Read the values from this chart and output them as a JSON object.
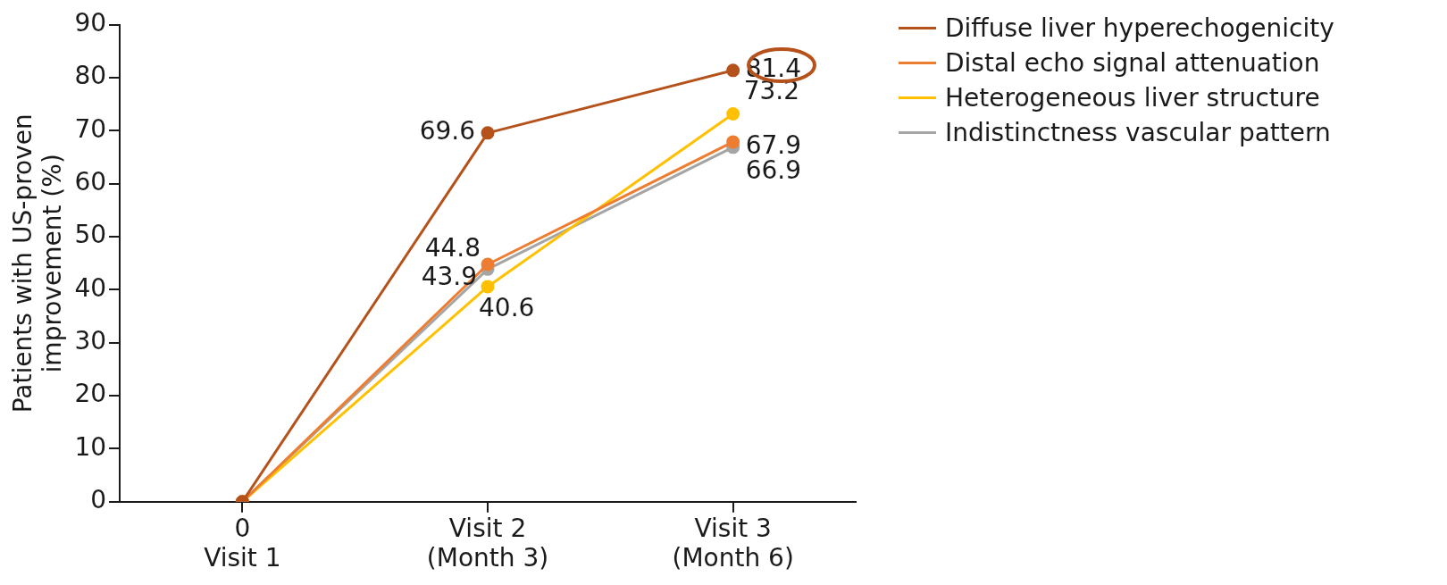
{
  "chart_data": {
    "type": "line",
    "ylabel": "Patients with US-proven\nimprovement (%)",
    "categories": [
      "0\nVisit 1",
      "Visit 2\n(Month 3)",
      "Visit 3\n(Month 6)"
    ],
    "series": [
      {
        "name": "Diffuse liver hyperechogenicity",
        "color": "#b5521b",
        "values": [
          0,
          69.6,
          81.4
        ],
        "value_labels": [
          null,
          "69.6",
          "81.4"
        ]
      },
      {
        "name": "Distal echo signal attenuation",
        "color": "#ed7d31",
        "values": [
          0,
          44.8,
          67.9
        ],
        "value_labels": [
          null,
          "44.8",
          "67.9"
        ]
      },
      {
        "name": "Heterogeneous liver structure",
        "color": "#ffc000",
        "values": [
          0,
          40.6,
          73.2
        ],
        "value_labels": [
          null,
          "40.6",
          "73.2"
        ]
      },
      {
        "name": "Indistinctness vascular pattern",
        "color": "#a5a5a5",
        "values": [
          0,
          43.9,
          66.9
        ],
        "value_labels": [
          null,
          "43.9",
          "66.9"
        ]
      }
    ],
    "ylim": [
      0,
      90
    ],
    "yticks": [
      0,
      10,
      20,
      30,
      40,
      50,
      60,
      70,
      80,
      90
    ],
    "grid": false,
    "legend": "top right",
    "marker": "circle",
    "line_style": "solid"
  }
}
